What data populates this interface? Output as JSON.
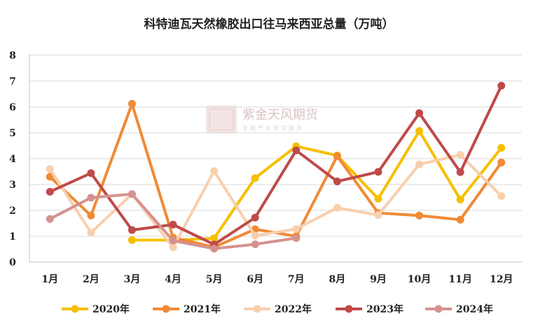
{
  "chart_data": {
    "type": "line",
    "title": "科特迪瓦天然橡胶出口往马来西亚总量（万吨）",
    "xlabel": "",
    "ylabel": "",
    "categories": [
      "1月",
      "2月",
      "3月",
      "4月",
      "5月",
      "6月",
      "7月",
      "8月",
      "9月",
      "10月",
      "11月",
      "12月"
    ],
    "yticks": [
      "0",
      "1",
      "2",
      "3",
      "4",
      "5",
      "6",
      "7",
      "8"
    ],
    "ylim": [
      0,
      8
    ],
    "grid": true,
    "legend_position": "bottom",
    "series": [
      {
        "name": "2020年",
        "color": "#f5c000",
        "values": [
          null,
          null,
          0.85,
          0.85,
          0.92,
          3.25,
          4.48,
          4.12,
          2.45,
          5.07,
          2.42,
          4.42
        ]
      },
      {
        "name": "2021年",
        "color": "#f08a35",
        "values": [
          3.3,
          1.8,
          6.12,
          0.95,
          0.58,
          1.27,
          1.0,
          4.1,
          1.9,
          1.8,
          1.64,
          3.85
        ]
      },
      {
        "name": "2022年",
        "color": "#f8cfad",
        "values": [
          3.6,
          1.14,
          2.63,
          0.57,
          3.52,
          1.02,
          1.28,
          2.1,
          1.82,
          3.78,
          4.15,
          2.55
        ]
      },
      {
        "name": "2023年",
        "color": "#bf4a4a",
        "values": [
          2.72,
          3.44,
          1.24,
          1.45,
          0.68,
          1.72,
          4.32,
          3.12,
          3.49,
          5.76,
          3.48,
          6.82
        ]
      },
      {
        "name": "2024年",
        "color": "#d4928f",
        "values": [
          1.67,
          2.49,
          2.63,
          0.83,
          0.52,
          0.69,
          0.93,
          null,
          null,
          null,
          null,
          null
        ]
      }
    ]
  },
  "watermark": {
    "logo_text": "紫金天风",
    "text": "紫金天风期货",
    "subtext": "金融产业研究服务"
  }
}
